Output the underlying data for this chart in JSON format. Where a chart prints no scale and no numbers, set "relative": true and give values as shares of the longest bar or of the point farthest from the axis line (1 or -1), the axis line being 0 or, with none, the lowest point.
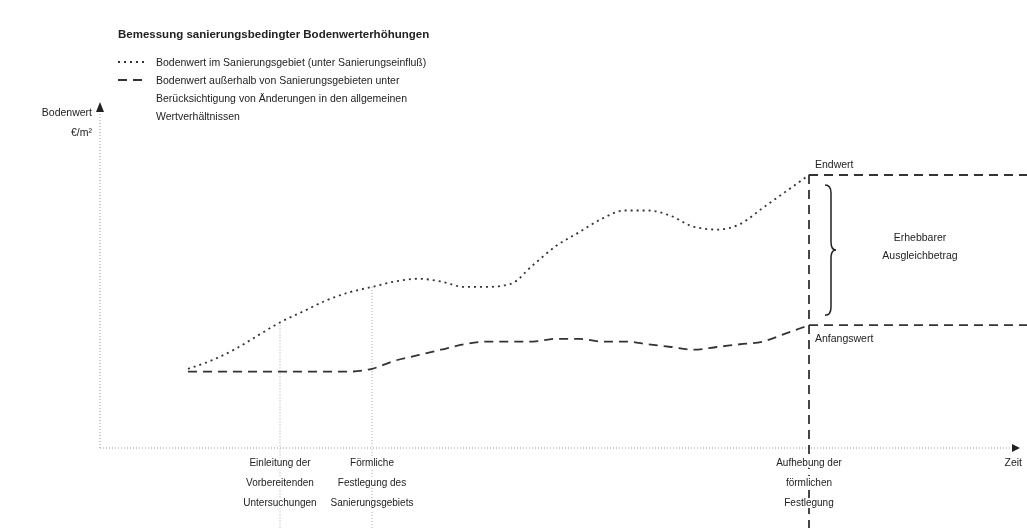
{
  "chart_data": {
    "type": "line",
    "title": "Bemessung sanierungsbedingter Bodenwerterhöhungen",
    "relative": true,
    "legend": "top left",
    "categories": [
      null,
      null,
      null,
      null,
      "Einleitung der Vorbereitenden Untersuchungen",
      null,
      null,
      null,
      "Förmliche Festlegung des Sanierungsgebiets",
      null,
      null,
      null,
      null,
      null,
      null,
      null,
      null,
      null,
      null,
      null,
      null,
      null,
      null,
      null,
      null,
      null,
      null,
      "Aufhebung der förmlichen Festlegung"
    ],
    "series": [
      {
        "name": "Bodenwert im Sanierungsgebiet (unter Sanierungseinfluß)",
        "color": "#333333",
        "line_style": "dotted",
        "values": [
          0.29,
          0.32,
          0.36,
          0.41,
          0.46,
          0.5,
          0.54,
          0.57,
          0.59,
          0.61,
          0.62,
          0.61,
          0.59,
          0.59,
          0.6,
          0.67,
          0.74,
          0.79,
          0.84,
          0.87,
          0.87,
          0.85,
          0.81,
          0.8,
          0.82,
          0.88,
          0.94,
          1
        ]
      },
      {
        "name": "Bodenwert außerhalb von Sanierungsgebieten unter Berücksichtigung von Änderungen in den allgemeinen Wertverhältnissen",
        "color": "#333333",
        "line_style": "dashed",
        "values": [
          0.28,
          0.28,
          0.28,
          0.28,
          0.28,
          0.28,
          0.28,
          0.28,
          0.29,
          0.32,
          0.34,
          0.36,
          0.38,
          0.39,
          0.39,
          0.39,
          0.4,
          0.4,
          0.39,
          0.39,
          0.38,
          0.37,
          0.36,
          0.37,
          0.38,
          0.39,
          0.42,
          0.45
        ]
      }
    ],
    "ref_lines": [
      {
        "axis": "y",
        "value": 1,
        "label": "Endwert",
        "color": "#333333",
        "line_style": "dashed"
      },
      {
        "axis": "y",
        "value": 0.45,
        "label": "Anfangswert",
        "color": "#333333",
        "line_style": "dashed"
      }
    ],
    "annotations": [
      "Erhebbarer Ausgleichbetrag",
      "Bodenwert €/m²",
      "Zeit"
    ]
  }
}
